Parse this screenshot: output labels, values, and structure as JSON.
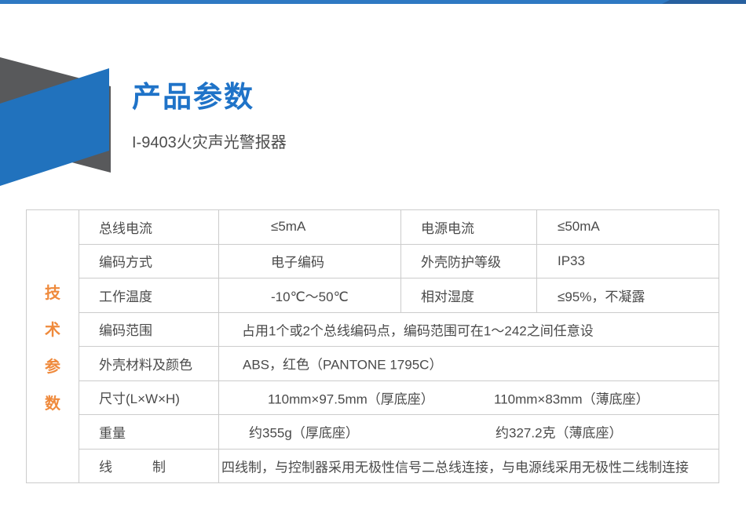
{
  "header": {
    "title": "产品参数",
    "subtitle": "I-9403火灾声光警报器"
  },
  "colors": {
    "topbar_blue": "#2e79c3",
    "topbar_blue_dark": "#27609f",
    "ribbon_blue": "#2172bd",
    "ribbon_gray": "#58595b",
    "title_blue": "#1f73c8",
    "accent_orange": "#ef8a3c",
    "table_border": "#cccccc",
    "text_color": "#4a4a4a"
  },
  "table": {
    "vertical_header": "技术参数",
    "vertical_header_chars": [
      "技",
      "术",
      "参",
      "数"
    ],
    "rows_four_col": [
      {
        "label1": "总线电流",
        "value1": "≤5mA",
        "label2": "电源电流",
        "value2": "≤50mA"
      },
      {
        "label1": "编码方式",
        "value1": "电子编码",
        "label2": "外壳防护等级",
        "value2": "IP33"
      },
      {
        "label1": "工作温度",
        "value1": "-10℃～50℃",
        "label2": "相对湿度",
        "value2": "≤95%，不凝露"
      }
    ],
    "rows_span": [
      {
        "label": "编码范围",
        "value": "占用1个或2个总线编码点，编码范围可在1～242之间任意设"
      },
      {
        "label": "外壳材料及颜色",
        "value": "ABS，红色（PANTONE 1795C）"
      },
      {
        "label": "尺寸(L×W×H)",
        "value_a": "110mm×97.5mm（厚底座）",
        "value_b": "110mm×83mm（薄底座）"
      },
      {
        "label": "重量",
        "value_a": "约355g（厚底座）",
        "value_b": "约327.2克（薄底座）"
      },
      {
        "label": "线　　　制",
        "value": "四线制，与控制器采用无极性信号二总线连接，与电源线采用无极性二线制连接"
      }
    ]
  }
}
